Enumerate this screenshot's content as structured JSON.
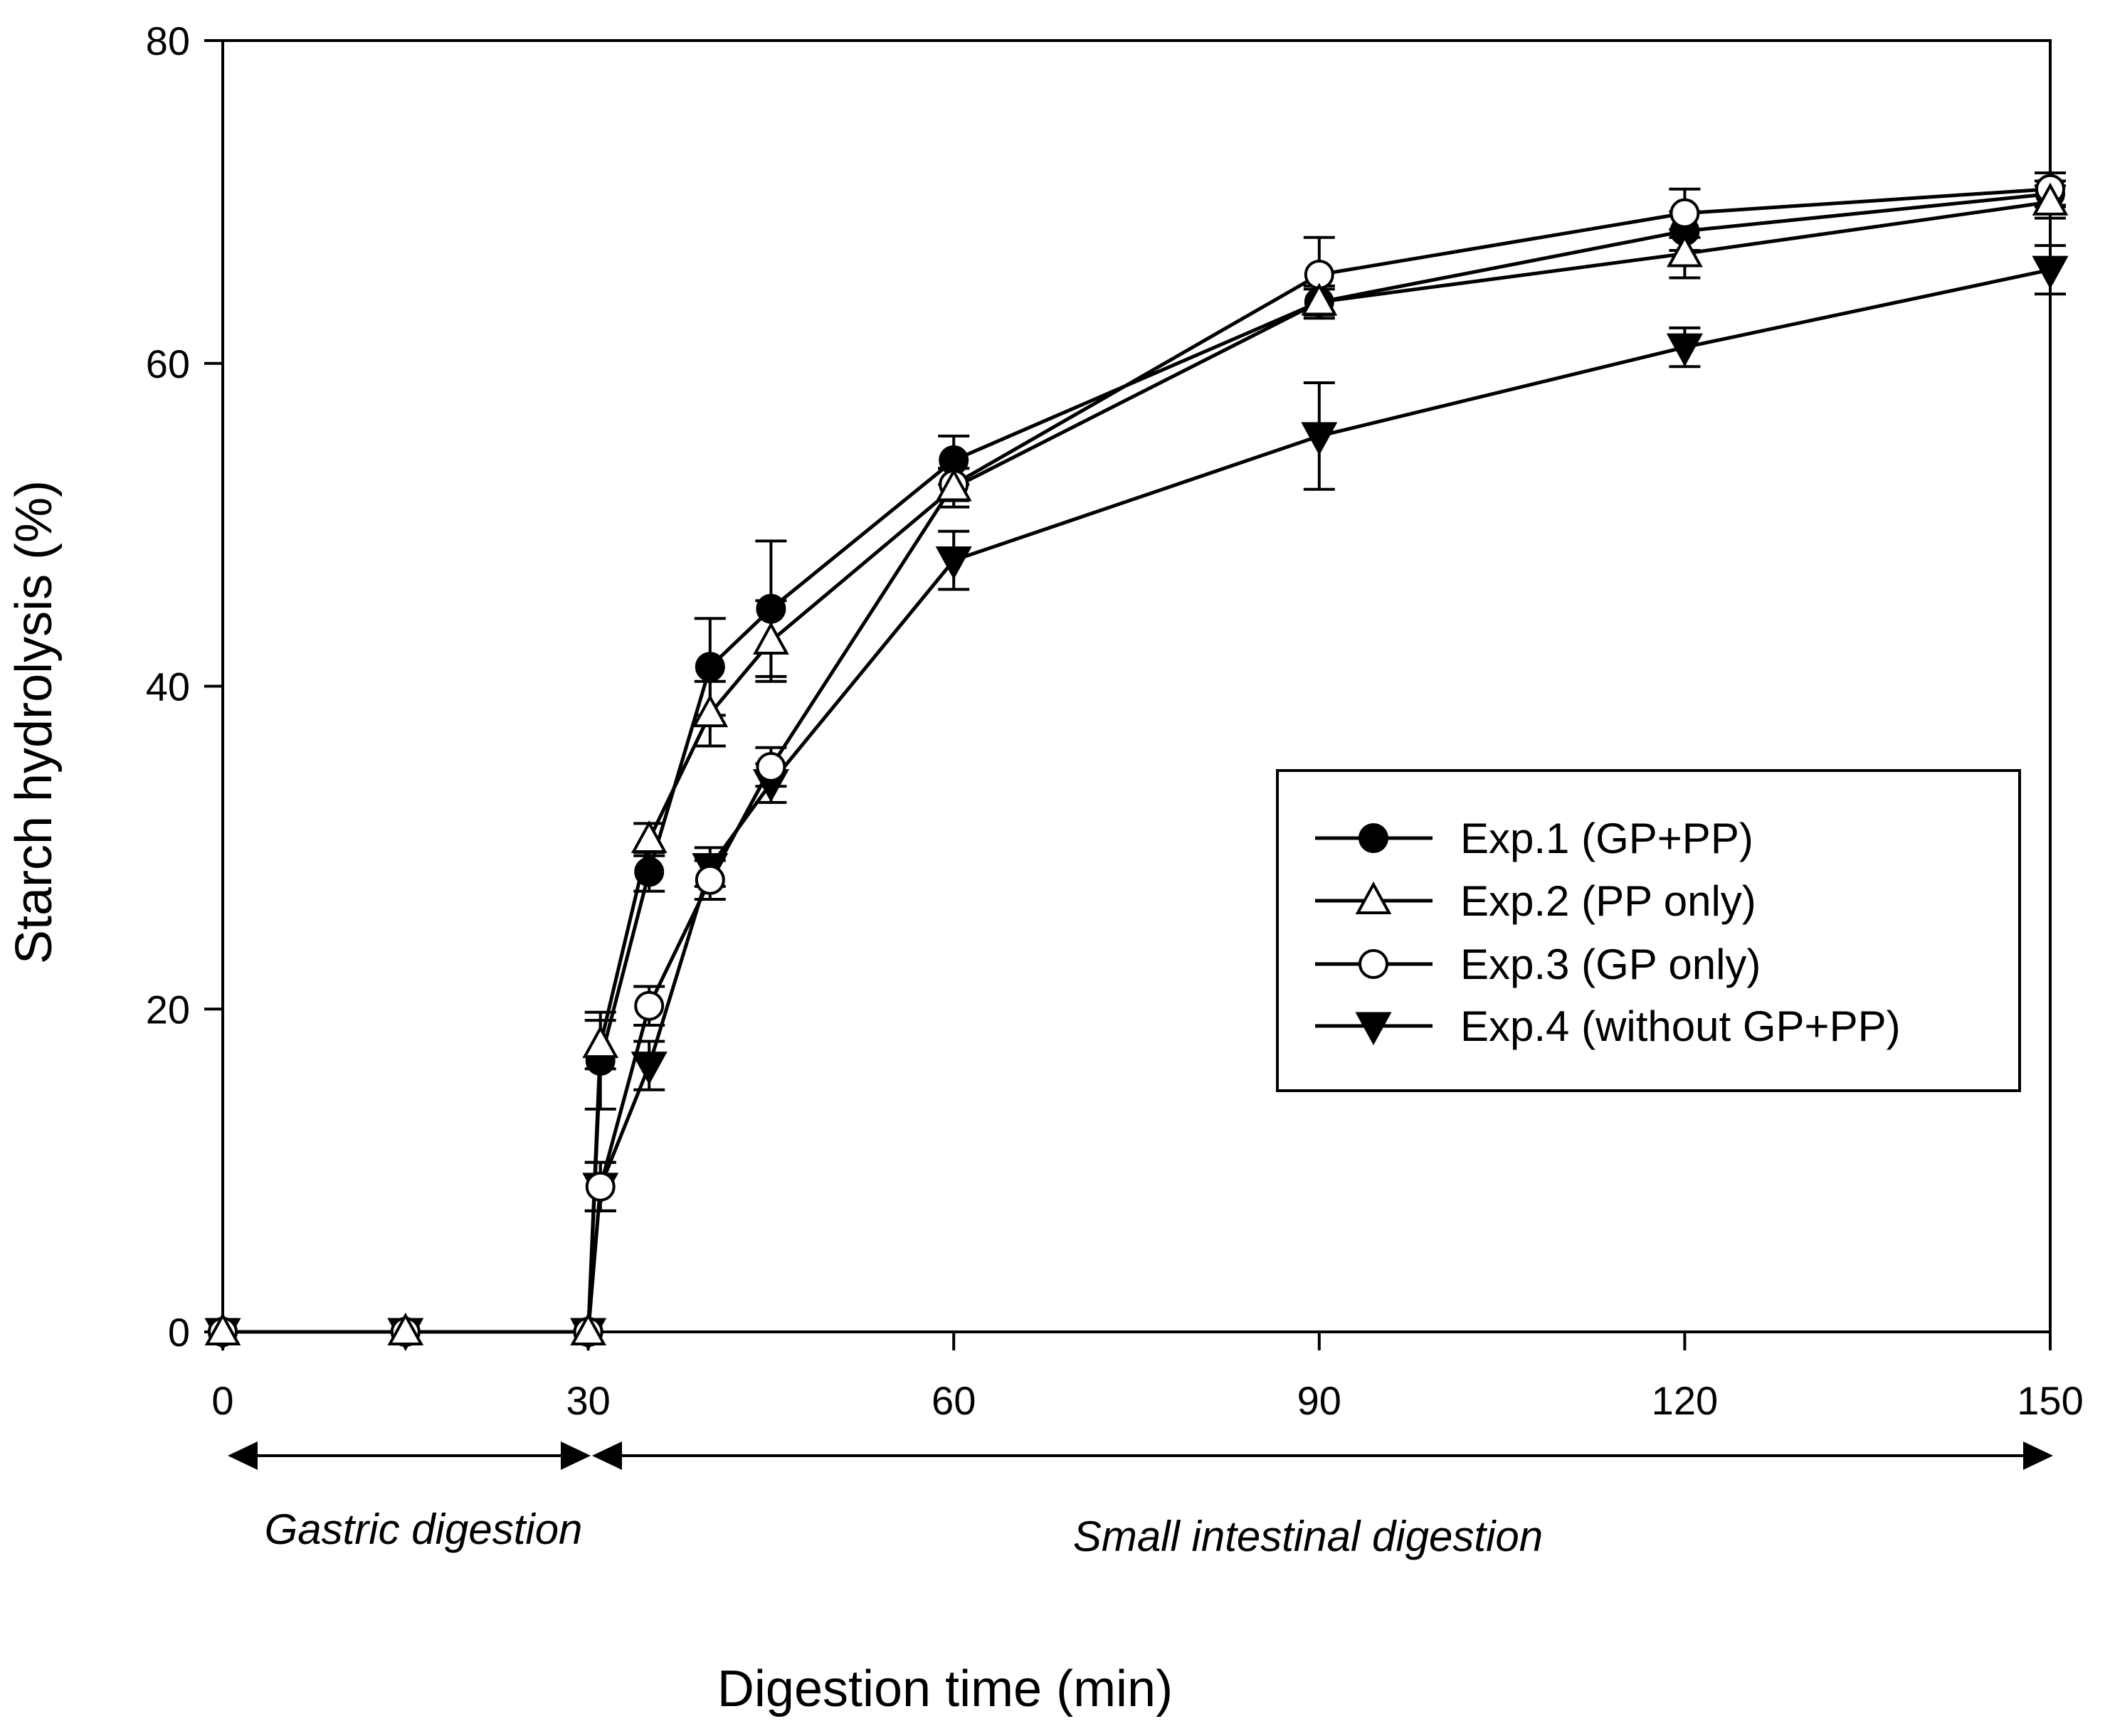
{
  "chart_data": {
    "type": "line",
    "title": "",
    "xlabel": "Digestion time (min)",
    "ylabel": "Starch hydrolysis (%)",
    "xlim": [
      0,
      150
    ],
    "ylim": [
      0,
      80
    ],
    "xticks": [
      0,
      30,
      60,
      90,
      120,
      150
    ],
    "yticks": [
      0,
      20,
      40,
      60,
      80
    ],
    "grid": false,
    "legend_position": "center-right",
    "phases": [
      {
        "label": "Gastric digestion",
        "from": 0,
        "to": 30
      },
      {
        "label": "Small intestinal digestion",
        "from": 30,
        "to": 150
      }
    ],
    "x": [
      0,
      15,
      30,
      31,
      35,
      40,
      45,
      60,
      90,
      120,
      150
    ],
    "series": [
      {
        "name": "Exp.1 (GP+PP)",
        "marker": "circle-filled",
        "values": [
          0,
          0,
          0,
          16.8,
          28.5,
          41.2,
          44.8,
          54.0,
          63.8,
          68.2,
          70.5
        ],
        "errors": [
          0,
          0,
          0,
          3.0,
          1.2,
          3.0,
          4.2,
          1.5,
          1.0,
          1.2,
          0.8
        ]
      },
      {
        "name": "Exp.2 (PP only)",
        "marker": "triangle-open",
        "values": [
          0,
          0,
          0,
          17.8,
          30.5,
          38.3,
          42.8,
          52.3,
          63.8,
          66.8,
          70.0
        ],
        "errors": [
          0,
          0,
          0,
          1.5,
          1.0,
          2.0,
          2.5,
          1.2,
          0.8,
          1.5,
          1.0
        ]
      },
      {
        "name": "Exp.3 (GP only)",
        "marker": "circle-open",
        "values": [
          0,
          0,
          0,
          9.0,
          20.2,
          28.0,
          35.0,
          52.5,
          65.5,
          69.3,
          70.8
        ],
        "errors": [
          0,
          0,
          0,
          1.5,
          1.2,
          1.2,
          1.2,
          1.0,
          2.3,
          1.5,
          1.0
        ]
      },
      {
        "name": "Exp.4 (without GP+PP)",
        "marker": "triangle-down-filled",
        "values": [
          0,
          0,
          0,
          9.0,
          16.5,
          28.8,
          34.0,
          47.8,
          55.5,
          61.0,
          65.8
        ],
        "errors": [
          0,
          0,
          0,
          1.5,
          1.5,
          1.2,
          1.2,
          1.8,
          3.3,
          1.2,
          1.5
        ]
      }
    ]
  }
}
